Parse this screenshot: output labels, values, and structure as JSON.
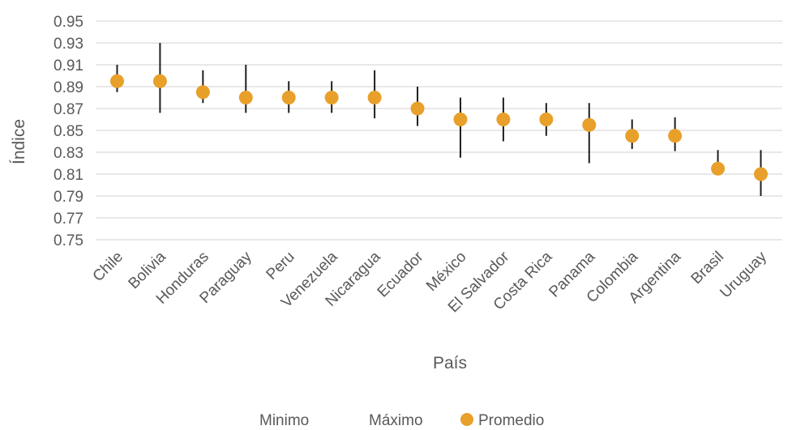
{
  "chart_data": {
    "type": "scatter",
    "xlabel": "País",
    "ylabel": "Índice",
    "ylim": [
      0.75,
      0.95
    ],
    "yticks": [
      "0.75",
      "0.77",
      "0.79",
      "0.81",
      "0.83",
      "0.85",
      "0.87",
      "0.89",
      "0.91",
      "0.93",
      "0.95"
    ],
    "grid": true,
    "legend_position": "bottom",
    "categories": [
      "Chile",
      "Bolivia",
      "Honduras",
      "Paraguay",
      "Peru",
      "Venezuela",
      "Nicaragua",
      "Ecuador",
      "México",
      "El Salvador",
      "Costa Rica",
      "Panama",
      "Colombia",
      "Argentina",
      "Brasil",
      "Uruguay"
    ],
    "series": [
      {
        "name": "Minimo",
        "values": [
          0.885,
          0.866,
          0.875,
          0.866,
          0.866,
          0.866,
          0.861,
          0.854,
          0.825,
          0.84,
          0.845,
          0.82,
          0.833,
          0.831,
          0.815,
          0.79
        ]
      },
      {
        "name": "Máximo",
        "values": [
          0.91,
          0.93,
          0.905,
          0.91,
          0.895,
          0.895,
          0.905,
          0.89,
          0.88,
          0.88,
          0.875,
          0.875,
          0.86,
          0.862,
          0.832,
          0.832
        ]
      },
      {
        "name": "Promedio",
        "values": [
          0.895,
          0.895,
          0.885,
          0.88,
          0.88,
          0.88,
          0.88,
          0.87,
          0.86,
          0.86,
          0.86,
          0.855,
          0.845,
          0.845,
          0.815,
          0.81
        ]
      }
    ],
    "colors": {
      "promedio": "#E8A02A",
      "range_line": "#1f1f1f",
      "grid": "#d9d9d9",
      "text": "#595959"
    }
  }
}
